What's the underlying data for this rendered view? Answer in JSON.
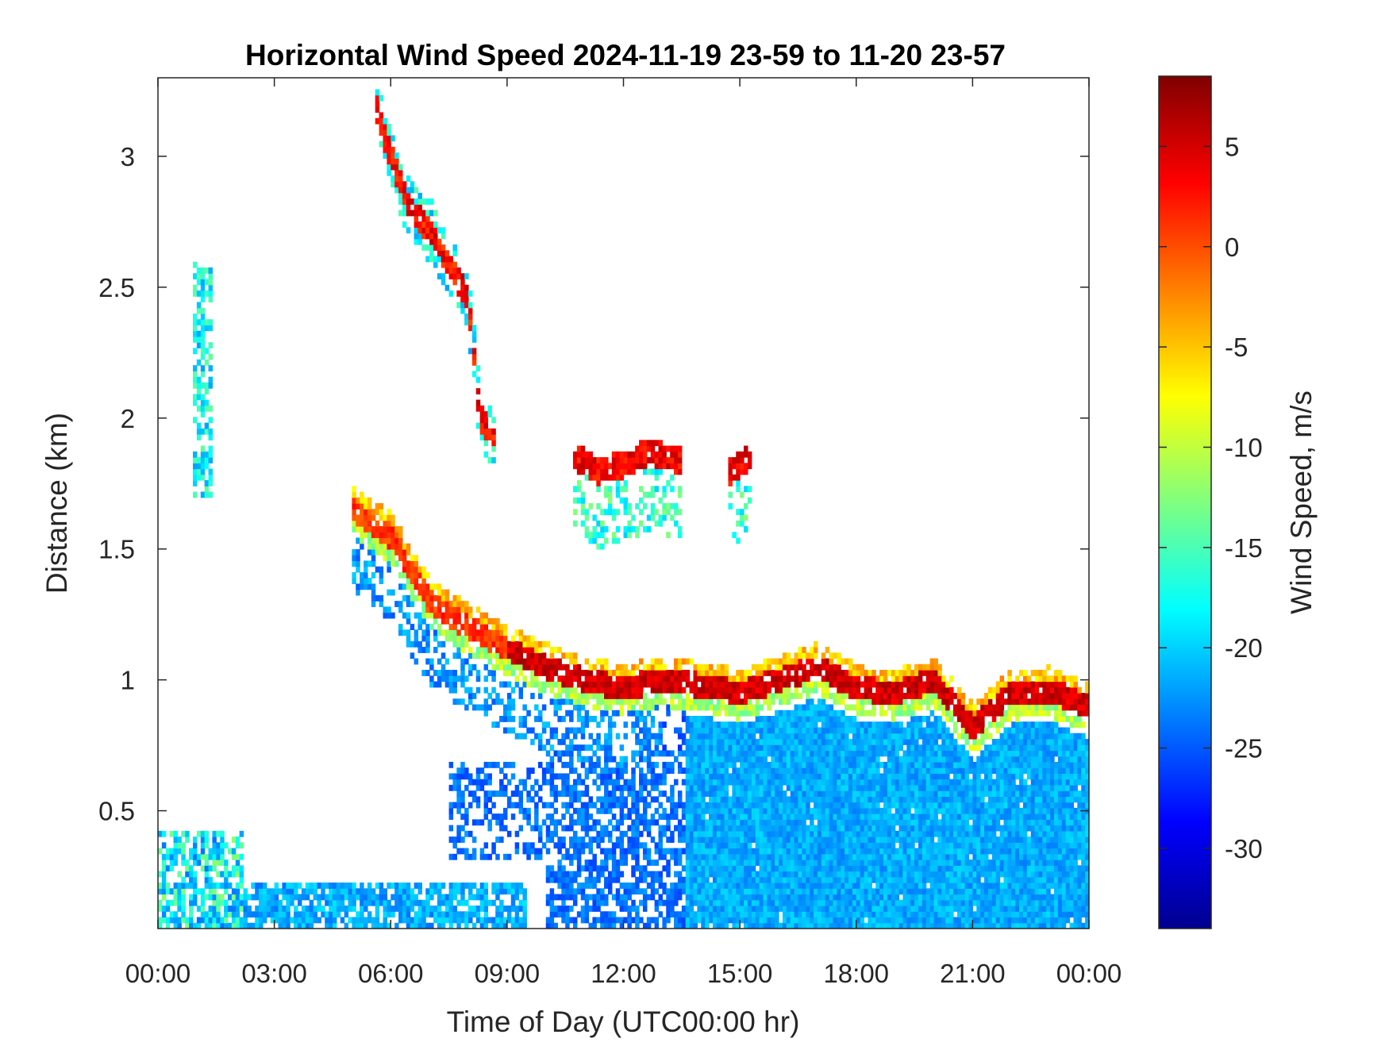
{
  "chart_data": {
    "type": "heatmap",
    "title": "Horizontal Wind Speed 2024-11-19 23-59 to 11-20 23-57",
    "xlabel": "Time of Day (UTC00:00 hr)",
    "ylabel": "Distance (km)",
    "colorbar_label": "Wind Speed, m/s",
    "xlim_hours": [
      0,
      24
    ],
    "ylim_km": [
      0.05,
      3.3
    ],
    "x_ticks": [
      {
        "hour": 0,
        "label": "00:00"
      },
      {
        "hour": 3,
        "label": "03:00"
      },
      {
        "hour": 6,
        "label": "06:00"
      },
      {
        "hour": 9,
        "label": "09:00"
      },
      {
        "hour": 12,
        "label": "12:00"
      },
      {
        "hour": 15,
        "label": "15:00"
      },
      {
        "hour": 18,
        "label": "18:00"
      },
      {
        "hour": 21,
        "label": "21:00"
      },
      {
        "hour": 24,
        "label": "00:00"
      }
    ],
    "y_ticks": [
      {
        "km": 0.5,
        "label": "0.5"
      },
      {
        "km": 1,
        "label": "1"
      },
      {
        "km": 1.5,
        "label": "1.5"
      },
      {
        "km": 2,
        "label": "2"
      },
      {
        "km": 2.5,
        "label": "2.5"
      },
      {
        "km": 3,
        "label": "3"
      }
    ],
    "colorbar": {
      "range": [
        -34,
        8.5
      ],
      "ticks": [
        {
          "value": 5,
          "label": "5"
        },
        {
          "value": 0,
          "label": "0"
        },
        {
          "value": -5,
          "label": "-5"
        },
        {
          "value": -10,
          "label": "-10"
        },
        {
          "value": -15,
          "label": "-15"
        },
        {
          "value": -20,
          "label": "-20"
        },
        {
          "value": -25,
          "label": "-25"
        },
        {
          "value": -30,
          "label": "-30"
        }
      ],
      "colormap": "jet"
    },
    "grid": false,
    "features": {
      "surface_layer": {
        "description_values": "dense blue region from surface up to ~0.85 km after 13:30, values about -24 m/s"
      },
      "jet_band": {
        "hours": [
          5.0,
          6.0,
          7.0,
          8.0,
          9.0,
          10.0,
          11.0,
          12.0,
          13.0,
          14.0,
          15.0,
          16.0,
          17.0,
          18.0,
          19.0,
          20.0,
          21.0,
          22.0,
          23.0,
          24.0
        ],
        "height_km": [
          1.65,
          1.55,
          1.3,
          1.2,
          1.12,
          1.05,
          1.0,
          0.97,
          1.0,
          0.98,
          0.95,
          1.0,
          1.05,
          0.97,
          0.95,
          1.0,
          0.82,
          0.95,
          0.96,
          0.9
        ],
        "peak_speed_ms": 5
      },
      "descending_layer": {
        "hours": [
          5.6,
          6.0,
          6.5,
          7.0,
          7.5,
          8.0,
          8.3,
          8.7
        ],
        "height_km": [
          3.2,
          3.0,
          2.8,
          2.72,
          2.6,
          2.45,
          2.0,
          1.93
        ],
        "peak_speed_ms": 4
      },
      "cloud_band": {
        "hours": [
          10.8,
          11.3,
          12.0,
          12.6,
          13.2,
          14.8,
          15.2
        ],
        "height_km": [
          1.85,
          1.8,
          1.82,
          1.87,
          1.85,
          1.8,
          1.85
        ],
        "peak_speed_ms": 3
      }
    }
  }
}
